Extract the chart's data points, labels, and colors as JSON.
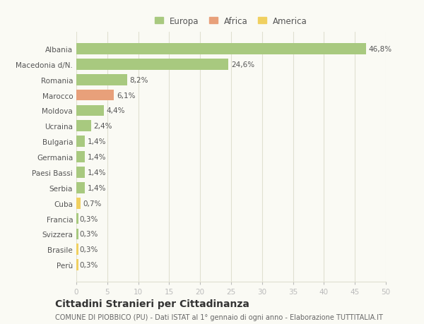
{
  "categories": [
    "Albania",
    "Macedonia d/N.",
    "Romania",
    "Marocco",
    "Moldova",
    "Ucraina",
    "Bulgaria",
    "Germania",
    "Paesi Bassi",
    "Serbia",
    "Cuba",
    "Francia",
    "Svizzera",
    "Brasile",
    "Perù"
  ],
  "values": [
    46.8,
    24.6,
    8.2,
    6.1,
    4.4,
    2.4,
    1.4,
    1.4,
    1.4,
    1.4,
    0.7,
    0.3,
    0.3,
    0.3,
    0.3
  ],
  "labels": [
    "46,8%",
    "24,6%",
    "8,2%",
    "6,1%",
    "4,4%",
    "2,4%",
    "1,4%",
    "1,4%",
    "1,4%",
    "1,4%",
    "0,7%",
    "0,3%",
    "0,3%",
    "0,3%",
    "0,3%"
  ],
  "colors": [
    "#a8c97f",
    "#a8c97f",
    "#a8c97f",
    "#e8a07a",
    "#a8c97f",
    "#a8c97f",
    "#a8c97f",
    "#a8c97f",
    "#a8c97f",
    "#a8c97f",
    "#f0d060",
    "#a8c97f",
    "#a8c97f",
    "#f0d060",
    "#f0d060"
  ],
  "legend_labels": [
    "Europa",
    "Africa",
    "America"
  ],
  "legend_colors": [
    "#a8c97f",
    "#e8a07a",
    "#f0d060"
  ],
  "xlim": [
    0,
    50
  ],
  "xticks": [
    0,
    5,
    10,
    15,
    20,
    25,
    30,
    35,
    40,
    45,
    50
  ],
  "title": "Cittadini Stranieri per Cittadinanza",
  "subtitle": "COMUNE DI PIOBBICO (PU) - Dati ISTAT al 1° gennaio di ogni anno - Elaborazione TUTTITALIA.IT",
  "background_color": "#fafaf4",
  "grid_color": "#e0e0d0",
  "bar_height": 0.72,
  "label_fontsize": 7.5,
  "tick_fontsize": 7.5,
  "title_fontsize": 10,
  "subtitle_fontsize": 7
}
